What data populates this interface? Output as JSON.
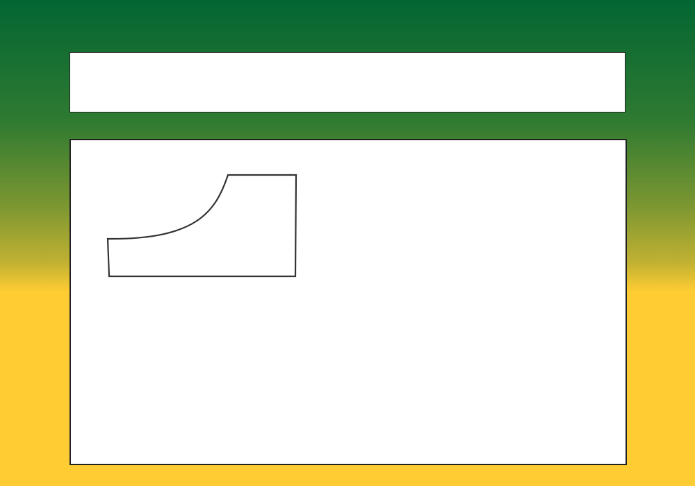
{
  "theme": {
    "gradient_top": "#036633",
    "gradient_bottom": "#ffcc33",
    "panel_background": "#ffffff",
    "panel_border": "#222222",
    "shape_stroke": "#333333"
  },
  "top_panel": {},
  "canvas": {
    "shapes": [
      {
        "type": "curved-quadrilateral-outline",
        "fill": "none"
      }
    ]
  }
}
